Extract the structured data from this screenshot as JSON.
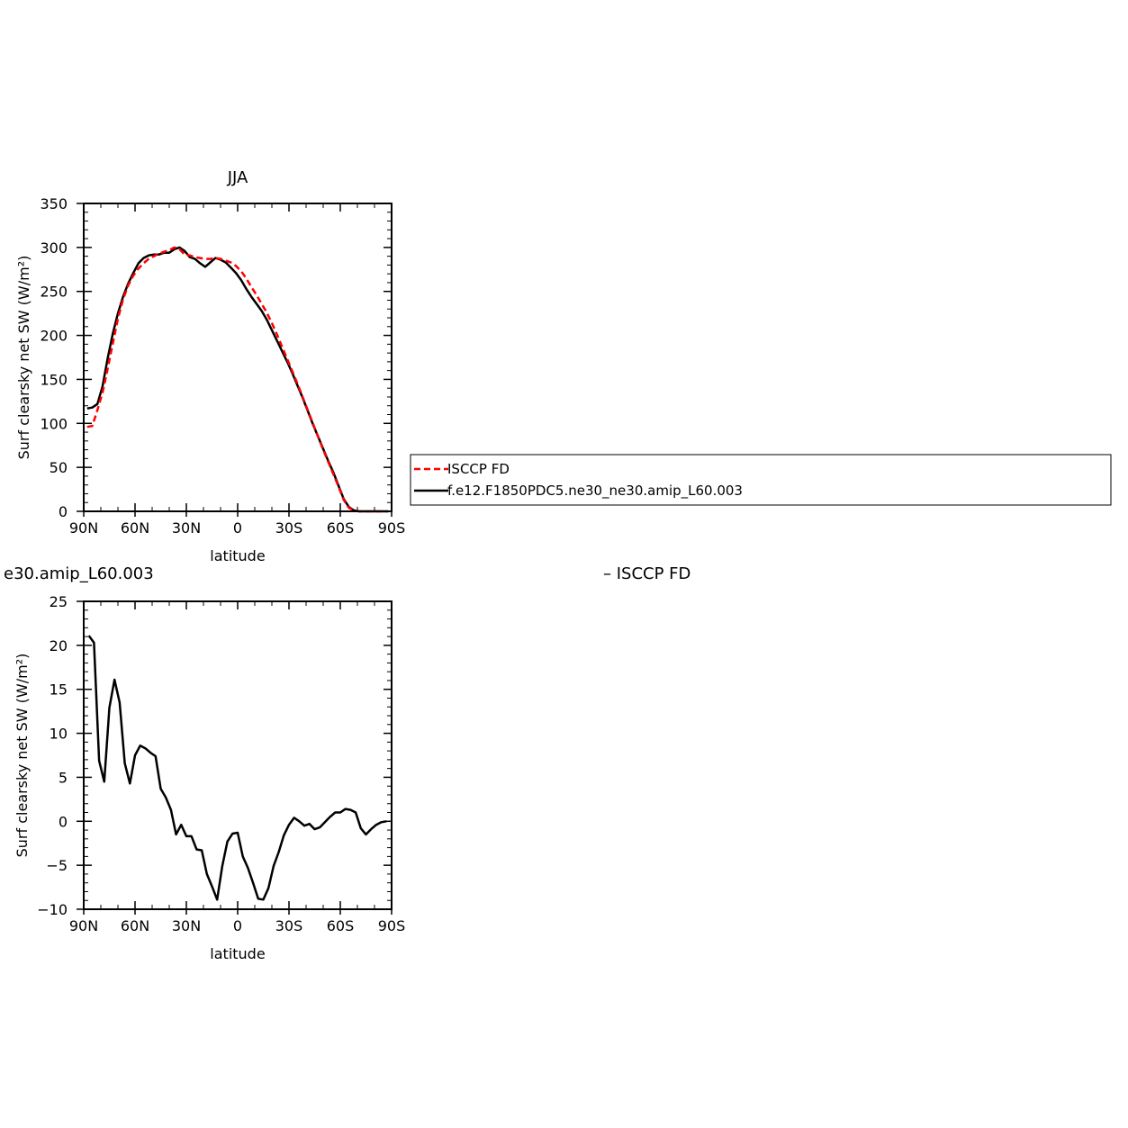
{
  "chart_data": [
    {
      "type": "line",
      "title": "JJA",
      "xlabel": "latitude",
      "ylabel": "Surf clearsky net SW (W/m²)",
      "xlim": [
        90,
        -90
      ],
      "ylim": [
        0,
        350
      ],
      "x_ticks": [
        90,
        60,
        30,
        0,
        -30,
        -60,
        -90
      ],
      "x_tick_labels": [
        "90N",
        "60N",
        "30N",
        "0",
        "30S",
        "60S",
        "90S"
      ],
      "y_ticks": [
        0,
        50,
        100,
        150,
        200,
        250,
        300,
        350
      ],
      "y_tick_labels": [
        "0",
        "50",
        "100",
        "150",
        "200",
        "250",
        "300",
        "350"
      ],
      "legend_position": "right",
      "series": [
        {
          "name": "ISCCP FD",
          "color": "#ff0000",
          "dash": "dashed",
          "x": [
            88,
            85,
            82,
            79,
            76,
            73,
            70,
            67,
            64,
            61,
            58,
            55,
            52,
            49,
            46,
            43,
            40,
            37,
            34,
            31,
            28,
            25,
            22,
            19,
            16,
            13,
            10,
            7,
            4,
            1,
            -2,
            -5,
            -8,
            -11,
            -14,
            -17,
            -20,
            -23,
            -26,
            -29,
            -32,
            -35,
            -38,
            -41,
            -44,
            -47,
            -50,
            -53,
            -56,
            -59,
            -62,
            -65,
            -68,
            -71,
            -74,
            -77,
            -80,
            -83,
            -86,
            -88
          ],
          "y": [
            96,
            97,
            115,
            135,
            162,
            191,
            219,
            241,
            257,
            268,
            276,
            282,
            287,
            290,
            293,
            295,
            297,
            300,
            298,
            292,
            291,
            289,
            288,
            287,
            287,
            288,
            287,
            285,
            283,
            279,
            273,
            265,
            255,
            246,
            236,
            226,
            214,
            201,
            187,
            173,
            159,
            145,
            130,
            115,
            100,
            85,
            70,
            56,
            42,
            28,
            13,
            4,
            1,
            0,
            0,
            0,
            0,
            0,
            0,
            0
          ]
        },
        {
          "name": "f.e12.F1850PDC5.ne30_ne30.amip_L60.003",
          "color": "#000000",
          "dash": "solid",
          "x": [
            88,
            85,
            82,
            79,
            76,
            73,
            70,
            67,
            64,
            61,
            58,
            55,
            52,
            49,
            46,
            43,
            40,
            37,
            34,
            31,
            28,
            25,
            22,
            19,
            16,
            13,
            10,
            7,
            4,
            1,
            -2,
            -5,
            -8,
            -11,
            -14,
            -17,
            -20,
            -23,
            -26,
            -29,
            -32,
            -35,
            -38,
            -41,
            -44,
            -47,
            -50,
            -53,
            -56,
            -59,
            -62,
            -65,
            -68,
            -71,
            -74,
            -77,
            -80,
            -83,
            -86,
            -88
          ],
          "y": [
            117,
            118,
            122,
            142,
            174,
            202,
            225,
            244,
            259,
            271,
            282,
            288,
            291,
            292,
            292,
            294,
            294,
            298,
            300,
            296,
            289,
            287,
            282,
            278,
            283,
            288,
            286,
            283,
            277,
            271,
            263,
            253,
            244,
            236,
            228,
            218,
            206,
            194,
            182,
            170,
            157,
            143,
            129,
            114,
            99,
            85,
            71,
            57,
            44,
            29,
            14,
            5,
            1,
            0,
            0,
            0,
            0,
            0,
            0,
            0
          ]
        }
      ]
    },
    {
      "type": "line",
      "title": "e30.amip_L60.003",
      "subtitle_right": "– ISCCP FD",
      "xlabel": "latitude",
      "ylabel": "Surf clearsky net SW (W/m²)",
      "xlim": [
        90,
        -90
      ],
      "ylim": [
        -10,
        25
      ],
      "x_ticks": [
        90,
        60,
        30,
        0,
        -30,
        -60,
        -90
      ],
      "x_tick_labels": [
        "90N",
        "60N",
        "30N",
        "0",
        "30S",
        "60S",
        "90S"
      ],
      "y_ticks": [
        -10,
        -5,
        0,
        5,
        10,
        15,
        20,
        25
      ],
      "y_tick_labels": [
        "−10",
        "−5",
        "0",
        "5",
        "10",
        "15",
        "20",
        "25"
      ],
      "series": [
        {
          "color": "#000000",
          "dash": "solid",
          "x": [
            87,
            84,
            81,
            78,
            75,
            72,
            69,
            66,
            63,
            60,
            57,
            54,
            51,
            48,
            45,
            42,
            39,
            36,
            33,
            30,
            27,
            24,
            21,
            18,
            15,
            12,
            9,
            6,
            3,
            0,
            -3,
            -6,
            -9,
            -12,
            -15,
            -18,
            -21,
            -24,
            -27,
            -30,
            -33,
            -36,
            -39,
            -42,
            -45,
            -48,
            -51,
            -54,
            -57,
            -60,
            -63,
            -66,
            -69,
            -72,
            -75,
            -78,
            -81,
            -84,
            -87
          ],
          "y": [
            21.1,
            20.3,
            6.9,
            4.5,
            12.9,
            16.1,
            13.5,
            6.6,
            4.3,
            7.5,
            8.6,
            8.3,
            7.8,
            7.4,
            3.7,
            2.7,
            1.3,
            -1.5,
            -0.4,
            -1.7,
            -1.7,
            -3.2,
            -3.3,
            -6.0,
            -7.4,
            -8.9,
            -5.1,
            -2.3,
            -1.4,
            -1.3,
            -4.0,
            -5.3,
            -7.0,
            -8.8,
            -8.9,
            -7.6,
            -5.1,
            -3.5,
            -1.6,
            -0.4,
            0.4,
            0.0,
            -0.5,
            -0.3,
            -0.9,
            -0.7,
            -0.1,
            0.5,
            1.0,
            1.0,
            1.4,
            1.3,
            1.0,
            -0.8,
            -1.5,
            -0.9,
            -0.4,
            -0.1,
            0.0
          ]
        }
      ]
    }
  ]
}
